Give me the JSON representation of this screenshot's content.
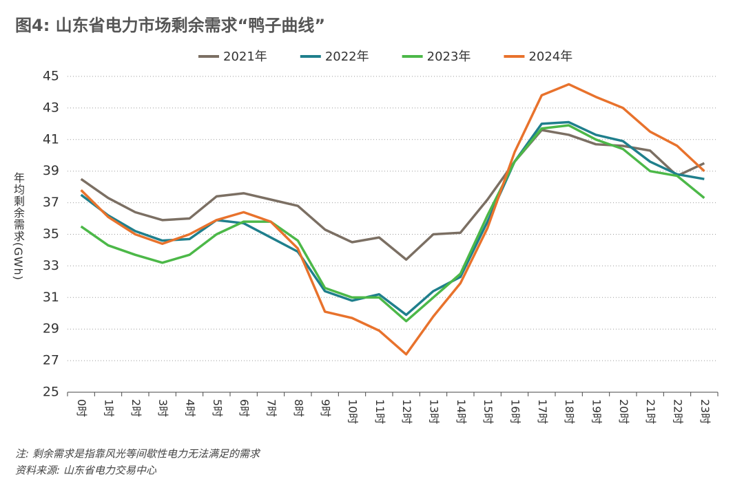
{
  "chart_data": {
    "type": "line",
    "title": "图4: 山东省电力市场剩余需求“鸭子曲线”",
    "y_label": "年均剩余需求(GWh)",
    "notes": [
      "注: 剩余需求是指靠风光等间歇性电力无法满足的需求",
      "资料来源: 山东省电力交易中心"
    ],
    "categories": [
      "0时",
      "1时",
      "2时",
      "3时",
      "4时",
      "5时",
      "6时",
      "7时",
      "8时",
      "9时",
      "10时",
      "11时",
      "12时",
      "13时",
      "14时",
      "15时",
      "16时",
      "17时",
      "18时",
      "19时",
      "20时",
      "21时",
      "22时",
      "23时"
    ],
    "series": [
      {
        "name": "2021年",
        "color": "#7b6f63",
        "values": [
          38.5,
          37.3,
          36.4,
          35.9,
          36.0,
          37.4,
          37.6,
          37.2,
          36.8,
          35.3,
          34.5,
          34.8,
          33.4,
          35.0,
          35.1,
          37.2,
          39.6,
          41.6,
          41.3,
          40.7,
          40.6,
          40.3,
          38.7,
          39.5
        ]
      },
      {
        "name": "2022年",
        "color": "#1f7f8c",
        "values": [
          37.5,
          36.2,
          35.2,
          34.6,
          34.7,
          35.9,
          35.7,
          34.8,
          33.9,
          31.4,
          30.8,
          31.2,
          29.9,
          31.4,
          32.3,
          35.8,
          39.6,
          42.0,
          42.1,
          41.3,
          40.9,
          39.6,
          38.8,
          38.5
        ]
      },
      {
        "name": "2023年",
        "color": "#4cb848",
        "values": [
          35.5,
          34.3,
          33.7,
          33.2,
          33.7,
          35.0,
          35.8,
          35.8,
          34.6,
          31.6,
          31.0,
          31.0,
          29.5,
          31.0,
          32.5,
          36.2,
          39.6,
          41.7,
          41.9,
          41.0,
          40.4,
          39.0,
          38.7,
          37.3
        ]
      },
      {
        "name": "2024年",
        "color": "#e8722c",
        "values": [
          37.8,
          36.1,
          35.0,
          34.4,
          35.0,
          35.9,
          36.4,
          35.8,
          34.1,
          30.1,
          29.7,
          28.9,
          27.4,
          29.8,
          31.9,
          35.4,
          40.2,
          43.8,
          44.5,
          43.7,
          43.0,
          41.5,
          40.6,
          39.0
        ]
      }
    ],
    "ylim": [
      25,
      45
    ],
    "yticks": [
      25,
      27,
      29,
      31,
      33,
      35,
      37,
      39,
      41,
      43,
      45
    ],
    "grid": true,
    "legend": "top"
  }
}
